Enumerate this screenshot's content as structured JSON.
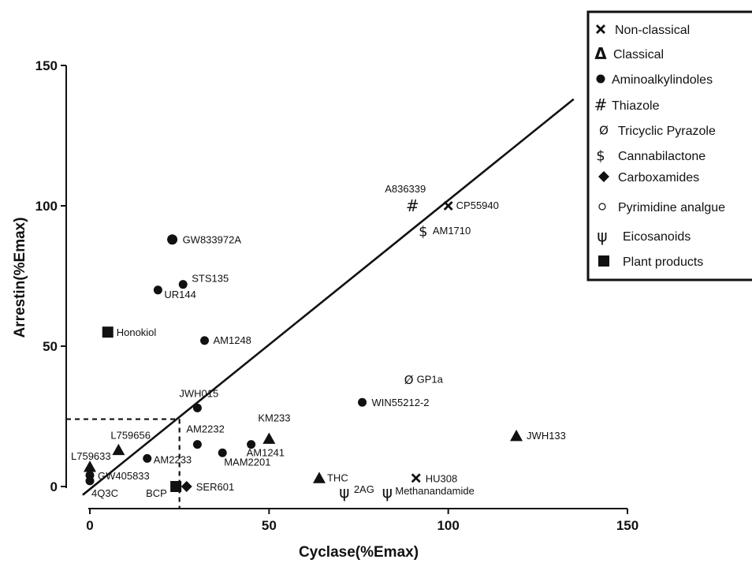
{
  "chart_data": {
    "type": "scatter",
    "xlabel": "Cyclase(%Emax)",
    "ylabel": "Arrestin(%Emax)",
    "xlim": [
      0,
      150
    ],
    "ylim": [
      0,
      150
    ],
    "xticks": [
      "0",
      "50",
      "100",
      "150"
    ],
    "yticks": [
      "0",
      "50",
      "100",
      "150"
    ],
    "grid": false,
    "legend_position": "top-right",
    "legend": [
      {
        "marker": "x",
        "label": "Non-classical"
      },
      {
        "marker": "delta",
        "label": "Classical"
      },
      {
        "marker": "dot",
        "label": "Aminoalkylindoles"
      },
      {
        "marker": "hash",
        "label": "Thiazole"
      },
      {
        "marker": "slashed-circle",
        "label": "Tricyclic Pyrazole"
      },
      {
        "marker": "dollar",
        "label": "Cannabilactone"
      },
      {
        "marker": "diamond",
        "label": "Carboxamides"
      },
      {
        "marker": "open-circle",
        "label": "Pyrimidine analgue"
      },
      {
        "marker": "psi",
        "label": "Eicosanoids"
      },
      {
        "marker": "square",
        "label": "Plant products"
      }
    ],
    "points": [
      {
        "label": "CP55940",
        "x": 100,
        "y": 100,
        "marker": "x"
      },
      {
        "label": "HU308",
        "x": 91,
        "y": 3,
        "marker": "x"
      },
      {
        "label": "THC",
        "x": 64,
        "y": 3,
        "marker": "triangle"
      },
      {
        "label": "KM233",
        "x": 50,
        "y": 17,
        "marker": "triangle"
      },
      {
        "label": "JWH133",
        "x": 119,
        "y": 18,
        "marker": "triangle"
      },
      {
        "label": "L759656",
        "x": 8,
        "y": 13,
        "marker": "triangle"
      },
      {
        "label": "L759633",
        "x": 0,
        "y": 7,
        "marker": "triangle"
      },
      {
        "label": "GW833972A",
        "x": 23,
        "y": 88,
        "marker": "dot-large"
      },
      {
        "label": "STS135",
        "x": 26,
        "y": 72,
        "marker": "dot"
      },
      {
        "label": "UR144",
        "x": 19,
        "y": 70,
        "marker": "dot"
      },
      {
        "label": "AM1248",
        "x": 32,
        "y": 52,
        "marker": "dot"
      },
      {
        "label": "JWH015",
        "x": 30,
        "y": 28,
        "marker": "dot"
      },
      {
        "label": "WIN55212-2",
        "x": 76,
        "y": 30,
        "marker": "dot"
      },
      {
        "label": "AM2232",
        "x": 30,
        "y": 15,
        "marker": "dot"
      },
      {
        "label": "AM1241",
        "x": 45,
        "y": 15,
        "marker": "dot"
      },
      {
        "label": "MAM2201",
        "x": 37,
        "y": 12,
        "marker": "dot"
      },
      {
        "label": "AM2233",
        "x": 16,
        "y": 10,
        "marker": "dot"
      },
      {
        "label": "GW405833",
        "x": 0,
        "y": 4,
        "marker": "dot"
      },
      {
        "label": "4Q3C",
        "x": 0,
        "y": 2,
        "marker": "dot"
      },
      {
        "label": "A836339",
        "x": 90,
        "y": 100,
        "marker": "hash"
      },
      {
        "label": "GP1a",
        "x": 89,
        "y": 38,
        "marker": "slashed-circle"
      },
      {
        "label": "AM1710",
        "x": 93,
        "y": 91,
        "marker": "dollar"
      },
      {
        "label": "SER601",
        "x": 27,
        "y": 0,
        "marker": "diamond"
      },
      {
        "label": "2AG",
        "x": 71,
        "y": -2,
        "marker": "psi"
      },
      {
        "label": "Methanandamide",
        "x": 83,
        "y": -2,
        "marker": "psi"
      },
      {
        "label": "Honokiol",
        "x": 5,
        "y": 55,
        "marker": "square"
      },
      {
        "label": "BCP",
        "x": 24,
        "y": 0,
        "marker": "square"
      }
    ],
    "regression_line": {
      "x": [
        -2,
        135
      ],
      "y": [
        -3,
        138
      ]
    },
    "reference_lines": {
      "x": 25,
      "y": 24,
      "style": "dashed"
    }
  }
}
